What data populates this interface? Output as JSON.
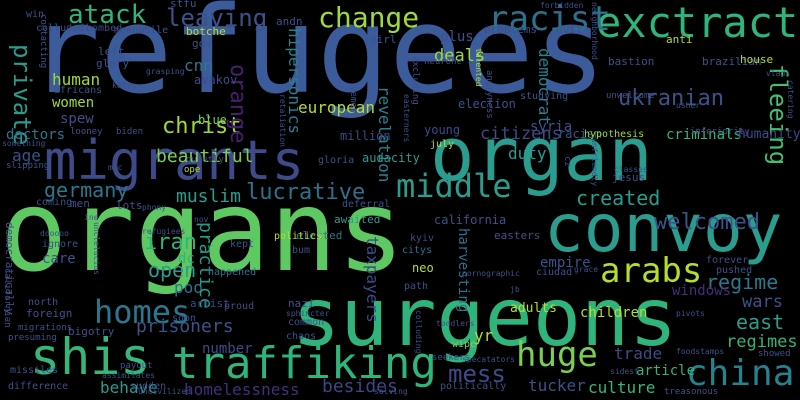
{
  "cloud": {
    "words": [
      {
        "text": "refugees",
        "color": "#3b5b9a"
      },
      {
        "text": "organs",
        "color": "#5ec962"
      },
      {
        "text": "organ",
        "color": "#2a9d8f"
      },
      {
        "text": "surgeons",
        "color": "#2fb47c"
      },
      {
        "text": "migrants",
        "color": "#3e4a89"
      },
      {
        "text": "convoy",
        "color": "#2a9d8f"
      },
      {
        "text": "traffiking",
        "color": "#2fb47c"
      },
      {
        "text": "shis",
        "color": "#35b779"
      },
      {
        "text": "exctract",
        "color": "#2fb47c"
      },
      {
        "text": "china",
        "color": "#26828e"
      },
      {
        "text": "homes",
        "color": "#2a788e"
      },
      {
        "text": "middle",
        "color": "#2a9d8f"
      },
      {
        "text": "huge",
        "color": "#7ad151"
      },
      {
        "text": "racist",
        "color": "#2c728e"
      },
      {
        "text": "change",
        "color": "#a0da39"
      },
      {
        "text": "arabs",
        "color": "#b5de2b"
      },
      {
        "text": "atack",
        "color": "#2fb47c"
      },
      {
        "text": "leaving",
        "color": "#3b528b"
      },
      {
        "text": "mess",
        "color": "#3e4a89"
      },
      {
        "text": "ukranian",
        "color": "#3b528b"
      },
      {
        "text": "welcomed",
        "color": "#3b528b"
      },
      {
        "text": "private",
        "color": "#2a9d8f"
      },
      {
        "text": "christ",
        "color": "#a0da39"
      },
      {
        "text": "lucrative",
        "color": "#2c728e"
      },
      {
        "text": "orange",
        "color": "#481f70"
      },
      {
        "text": "iran",
        "color": "#2fb47c"
      },
      {
        "text": "germany",
        "color": "#2a788e"
      },
      {
        "text": "muslim",
        "color": "#2a9d8f"
      },
      {
        "text": "created",
        "color": "#2a9d8f"
      },
      {
        "text": "regime",
        "color": "#2a788e"
      },
      {
        "text": "fleeing",
        "color": "#44bf70"
      },
      {
        "text": "east",
        "color": "#2a9d8f"
      },
      {
        "text": "regimes",
        "color": "#2fb47c"
      },
      {
        "text": "prisoners",
        "color": "#3b528b"
      },
      {
        "text": "homelessness",
        "color": "#472d7b"
      },
      {
        "text": "besides",
        "color": "#414487"
      },
      {
        "text": "trade",
        "color": "#3e4a89"
      },
      {
        "text": "culture",
        "color": "#35b779"
      },
      {
        "text": "tucker",
        "color": "#3b528b"
      },
      {
        "text": "article",
        "color": "#2fb47c"
      },
      {
        "text": "wars",
        "color": "#3b528b"
      },
      {
        "text": "open",
        "color": "#2a9d8f"
      },
      {
        "text": "poo",
        "color": "#2c728e"
      },
      {
        "text": "dc",
        "color": "#2fb47c"
      },
      {
        "text": "practice",
        "color": "#1f9e89"
      },
      {
        "text": "behave",
        "color": "#2a9d8f"
      },
      {
        "text": "number",
        "color": "#3e4a89"
      },
      {
        "text": "beautiful",
        "color": "#7ad151"
      },
      {
        "text": "duty",
        "color": "#2a9d8f"
      },
      {
        "text": "citizens",
        "color": "#3e4a89"
      },
      {
        "text": "syria",
        "color": "#3b528b"
      },
      {
        "text": "european",
        "color": "#b5de2b"
      },
      {
        "text": "human",
        "color": "#a0da39"
      },
      {
        "text": "women",
        "color": "#a0da39"
      },
      {
        "text": "cnn",
        "color": "#2a788e"
      },
      {
        "text": "age",
        "color": "#3b528b"
      },
      {
        "text": "doctors",
        "color": "#2a788e"
      },
      {
        "text": "spew",
        "color": "#3b528b"
      },
      {
        "text": "deals",
        "color": "#a0da39"
      },
      {
        "text": "plus",
        "color": "#3b528b"
      },
      {
        "text": "democrat",
        "color": "#26828e"
      },
      {
        "text": "hipersonics",
        "color": "#26828e"
      },
      {
        "text": "revelation",
        "color": "#26828e"
      },
      {
        "text": "children",
        "color": "#b5de2b"
      },
      {
        "text": "windows",
        "color": "#472d7b"
      },
      {
        "text": "taxpayers",
        "color": "#3e4a89"
      },
      {
        "text": "harvesting",
        "color": "#2c728e"
      },
      {
        "text": "empire",
        "color": "#3b528b"
      },
      {
        "text": "care",
        "color": "#3b528b"
      },
      {
        "text": "yr",
        "color": "#b5de2b"
      },
      {
        "text": "adults",
        "color": "#b5de2b"
      },
      {
        "text": "million",
        "color": "#3e4a89"
      },
      {
        "text": "young",
        "color": "#3e4a89"
      },
      {
        "text": "election",
        "color": "#3b528b"
      },
      {
        "text": "racism",
        "color": "#3b528b"
      },
      {
        "text": "criminals",
        "color": "#35b779"
      },
      {
        "text": "humanity",
        "color": "#3e4a89"
      },
      {
        "text": "avakov",
        "color": "#3e4a89"
      },
      {
        "text": "glory",
        "color": "#3b528b"
      },
      {
        "text": "africans",
        "color": "#3b528b"
      },
      {
        "text": "blue",
        "color": "#7ad151"
      },
      {
        "text": "gov",
        "color": "#3b528b"
      },
      {
        "text": "botche",
        "color": "#b5de2b"
      },
      {
        "text": "left",
        "color": "#3b528b"
      },
      {
        "text": "colluded",
        "color": "#3b528b"
      },
      {
        "text": "bombed",
        "color": "#3e4a89"
      },
      {
        "text": "meanwhile",
        "color": "#3b528b"
      },
      {
        "text": "stfu",
        "color": "#3b528b"
      },
      {
        "text": "win",
        "color": "#3b528b"
      },
      {
        "text": "andn",
        "color": "#3b528b"
      },
      {
        "text": "girl",
        "color": "#3b528b"
      },
      {
        "text": "problems",
        "color": "#3b528b"
      },
      {
        "text": "evil",
        "color": "#3b528b"
      },
      {
        "text": "bastion",
        "color": "#3b528b"
      },
      {
        "text": "brazilian",
        "color": "#3b528b"
      },
      {
        "text": "anti",
        "color": "#b5de2b"
      },
      {
        "text": "house",
        "color": "#b5de2b"
      },
      {
        "text": "studying",
        "color": "#3b528b"
      },
      {
        "text": "unwelcome",
        "color": "#3b528b"
      },
      {
        "text": "hypothesis",
        "color": "#a0da39"
      },
      {
        "text": "inferiority",
        "color": "#3b528b"
      },
      {
        "text": "july",
        "color": "#b5de2b"
      },
      {
        "text": "gloria",
        "color": "#3b528b"
      },
      {
        "text": "audacity",
        "color": "#2a9d8f"
      },
      {
        "text": "jesus",
        "color": "#3e4a89"
      },
      {
        "text": "lots",
        "color": "#3b528b"
      },
      {
        "text": "elected",
        "color": "#2a788e"
      },
      {
        "text": "awaited",
        "color": "#2a9d8f"
      },
      {
        "text": "california",
        "color": "#3b528b"
      },
      {
        "text": "easters",
        "color": "#3b528b"
      },
      {
        "text": "kyiv",
        "color": "#3e4a89"
      },
      {
        "text": "citys",
        "color": "#2c728e"
      },
      {
        "text": "politics",
        "color": "#b5de2b"
      },
      {
        "text": "bum",
        "color": "#3b528b"
      },
      {
        "text": "kept",
        "color": "#3b528b"
      },
      {
        "text": "happened",
        "color": "#2c728e"
      },
      {
        "text": "ignore",
        "color": "#3b528b"
      },
      {
        "text": "neo",
        "color": "#b5de2b"
      },
      {
        "text": "path",
        "color": "#3b528b"
      },
      {
        "text": "ciudad",
        "color": "#3b528b"
      },
      {
        "text": "forever",
        "color": "#3b528b"
      },
      {
        "text": "pushed",
        "color": "#3b528b"
      },
      {
        "text": "artist",
        "color": "#3e4a89"
      },
      {
        "text": "nazi",
        "color": "#3b528b"
      },
      {
        "text": "proud",
        "color": "#3b528b"
      },
      {
        "text": "soon",
        "color": "#3b528b"
      },
      {
        "text": "common",
        "color": "#3b528b"
      },
      {
        "text": "chaos",
        "color": "#3b528b"
      },
      {
        "text": "bigotry",
        "color": "#3b528b"
      },
      {
        "text": "foreign",
        "color": "#3b528b"
      },
      {
        "text": "north",
        "color": "#3b528b"
      },
      {
        "text": "migrations",
        "color": "#3b528b"
      },
      {
        "text": "presuming",
        "color": "#3b528b"
      },
      {
        "text": "missiles",
        "color": "#3b528b"
      },
      {
        "text": "difference",
        "color": "#3b528b"
      },
      {
        "text": "sudden",
        "color": "#3e4a89"
      },
      {
        "text": "payout",
        "color": "#3b528b"
      },
      {
        "text": "politically",
        "color": "#3b528b"
      },
      {
        "text": "wipe",
        "color": "#7ad151"
      },
      {
        "text": "showed",
        "color": "#3b528b"
      },
      {
        "text": "treasonous",
        "color": "#3b528b"
      },
      {
        "text": "seekers",
        "color": "#3b528b"
      },
      {
        "text": "democratically",
        "color": "#3b528b"
      },
      {
        "text": "californian",
        "color": "#3b528b"
      },
      {
        "text": "slipping",
        "color": "#3b528b"
      },
      {
        "text": "something",
        "color": "#3b528b"
      },
      {
        "text": "contacting",
        "color": "#3b528b"
      },
      {
        "text": "men",
        "color": "#3b528b"
      },
      {
        "text": "coming",
        "color": "#3b528b"
      },
      {
        "text": "quietly",
        "color": "#3b528b"
      },
      {
        "text": "nov",
        "color": "#3b528b"
      },
      {
        "text": "deferral",
        "color": "#3b528b"
      },
      {
        "text": "yemen",
        "color": "#3b528b"
      },
      {
        "text": "excluding",
        "color": "#3b528b"
      },
      {
        "text": "angryness",
        "color": "#3b528b"
      },
      {
        "text": "neurone",
        "color": "#3b528b"
      },
      {
        "text": "catering",
        "color": "#3b528b"
      },
      {
        "text": "grasping",
        "color": "#3b528b"
      },
      {
        "text": "looney",
        "color": "#3b528b"
      },
      {
        "text": "biden",
        "color": "#3b528b"
      },
      {
        "text": "ope",
        "color": "#b5de2b"
      },
      {
        "text": "jb",
        "color": "#3b528b"
      },
      {
        "text": "cz",
        "color": "#3b528b"
      },
      {
        "text": "katyn",
        "color": "#3b528b"
      },
      {
        "text": "usher",
        "color": "#3b528b"
      },
      {
        "text": "vlads",
        "color": "#3b528b"
      },
      {
        "text": "uncivilized",
        "color": "#3b528b"
      },
      {
        "text": "forbidden",
        "color": "#3b528b"
      },
      {
        "text": "neighborhood",
        "color": "#3b528b"
      },
      {
        "text": "talented",
        "color": "#b5de2b"
      },
      {
        "text": "classes",
        "color": "#3b528b"
      },
      {
        "text": "pivots",
        "color": "#3b528b"
      },
      {
        "text": "specatators",
        "color": "#3b528b"
      },
      {
        "text": "toddlers",
        "color": "#3b528b"
      },
      {
        "text": "sphincter",
        "color": "#3b528b"
      },
      {
        "text": "pornographic",
        "color": "#3b528b"
      },
      {
        "text": "unfriendly",
        "color": "#3b528b"
      },
      {
        "text": "retaliation",
        "color": "#3b528b"
      },
      {
        "text": "foodstamps",
        "color": "#3b528b"
      },
      {
        "text": "assimilates",
        "color": "#3b528b"
      },
      {
        "text": "phony",
        "color": "#3b528b"
      },
      {
        "text": "mic",
        "color": "#3b528b"
      },
      {
        "text": "ine",
        "color": "#3b528b"
      },
      {
        "text": "refugiees",
        "color": "#3b528b"
      },
      {
        "text": "unclelucius",
        "color": "#3b528b"
      },
      {
        "text": "colluding",
        "color": "#3b528b"
      },
      {
        "text": "solving",
        "color": "#3b528b"
      },
      {
        "text": "easterners",
        "color": "#3b528b"
      },
      {
        "text": "grace",
        "color": "#3b528b"
      },
      {
        "text": "sidest",
        "color": "#3b528b"
      },
      {
        "text": "dooooo",
        "color": "#3b528b"
      }
    ]
  }
}
